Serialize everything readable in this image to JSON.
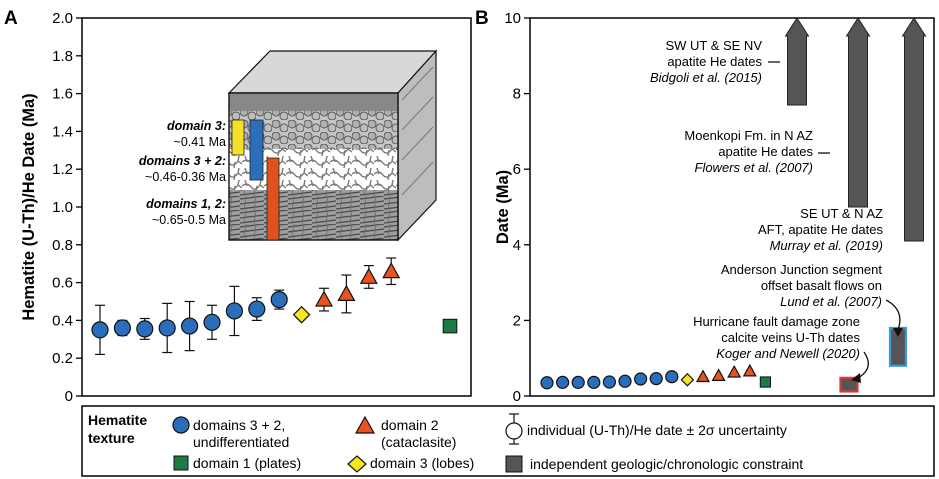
{
  "chart_data": [
    {
      "panel": "A",
      "type": "scatter",
      "ylabel": "Hematite (U-Th)/He Date (Ma)",
      "ylim": [
        0,
        2.0
      ],
      "yticks": [
        "0",
        "0.2",
        "0.4",
        "0.6",
        "0.8",
        "1.0",
        "1.2",
        "1.4",
        "1.6",
        "1.8",
        "2.0"
      ],
      "grid": false,
      "series": [
        {
          "name": "domains 3 + 2, undifferentiated",
          "marker": "circle",
          "color": "#2a6ebb",
          "points": [
            {
              "y": 0.35,
              "err": 0.13
            },
            {
              "y": 0.36,
              "err": 0.04
            },
            {
              "y": 0.355,
              "err": 0.055
            },
            {
              "y": 0.36,
              "err": 0.13
            },
            {
              "y": 0.37,
              "err": 0.13
            },
            {
              "y": 0.39,
              "err": 0.09
            },
            {
              "y": 0.45,
              "err": 0.13
            },
            {
              "y": 0.46,
              "err": 0.06
            },
            {
              "y": 0.51,
              "err": 0.05
            }
          ]
        },
        {
          "name": "domain 3 (lobes)",
          "marker": "diamond",
          "color": "#f7e51e",
          "points": [
            {
              "y": 0.43,
              "err": 0.0
            }
          ]
        },
        {
          "name": "domain 2 (cataclasite)",
          "marker": "triangle",
          "color": "#e8531e",
          "points": [
            {
              "y": 0.51,
              "err": 0.06
            },
            {
              "y": 0.54,
              "err": 0.1
            },
            {
              "y": 0.63,
              "err": 0.06
            },
            {
              "y": 0.66,
              "err": 0.07
            }
          ]
        },
        {
          "name": "domain 1 (plates)",
          "marker": "square",
          "color": "#1e7a44",
          "points": [
            {
              "y": 0.37,
              "err": 0.0
            }
          ]
        }
      ],
      "inset": {
        "annotations": [
          {
            "title": "domain 3:",
            "value": "~0.41 Ma",
            "color": "#f5e12a"
          },
          {
            "title": "domains 3 + 2:",
            "value": "~0.46-0.36 Ma",
            "color": "#2b6fbb"
          },
          {
            "title": "domains 1, 2:",
            "value": "~0.65-0.5 Ma",
            "color": "#e1501f"
          }
        ]
      }
    },
    {
      "panel": "B",
      "type": "scatter",
      "ylabel": "Date (Ma)",
      "ylim": [
        0,
        10
      ],
      "yticks": [
        "0",
        "2",
        "4",
        "6",
        "8",
        "10"
      ],
      "grid": false,
      "points": [
        {
          "y": 0.35,
          "marker": "circle"
        },
        {
          "y": 0.36,
          "marker": "circle"
        },
        {
          "y": 0.36,
          "marker": "circle"
        },
        {
          "y": 0.36,
          "marker": "circle"
        },
        {
          "y": 0.37,
          "marker": "circle"
        },
        {
          "y": 0.39,
          "marker": "circle"
        },
        {
          "y": 0.45,
          "marker": "circle"
        },
        {
          "y": 0.46,
          "marker": "circle"
        },
        {
          "y": 0.51,
          "marker": "circle"
        },
        {
          "y": 0.43,
          "marker": "diamond"
        },
        {
          "y": 0.51,
          "marker": "triangle"
        },
        {
          "y": 0.54,
          "marker": "triangle"
        },
        {
          "y": 0.63,
          "marker": "triangle"
        },
        {
          "y": 0.66,
          "marker": "triangle"
        },
        {
          "y": 0.37,
          "marker": "square"
        }
      ],
      "constraints": [
        {
          "id": "bidgoli",
          "lines": [
            "SW UT & SE NV",
            "apatite He dates"
          ],
          "citation": "Bidgoli et al. (2015)",
          "from": 7.7,
          "to": 10,
          "arrow_up": true
        },
        {
          "id": "flowers",
          "lines": [
            "Moenkopi Fm. in N AZ",
            "apatite He dates"
          ],
          "citation": "Flowers et al. (2007)",
          "from": 5.0,
          "to": 10,
          "arrow_up": true
        },
        {
          "id": "murray",
          "lines": [
            "SE UT & N AZ",
            "AFT, apatite He dates"
          ],
          "citation": "Murray et al. (2019)",
          "from": 4.1,
          "to": 10,
          "arrow_up": true
        },
        {
          "id": "lund",
          "lines": [
            "Anderson Junction segment",
            "offset basalt flows on"
          ],
          "citation": "Lund et al. (2007)",
          "from": 0.8,
          "to": 1.8,
          "outline": "#3a9ad6"
        },
        {
          "id": "koger",
          "lines": [
            "Hurricane fault damage zone",
            "calcite veins U-Th dates"
          ],
          "citation": "Koger and Newell (2020)",
          "from": 0.12,
          "to": 0.48,
          "outline": "#d33a3a"
        }
      ]
    }
  ],
  "panel_labels": {
    "a": "A",
    "b": "B"
  },
  "legend": {
    "title_line1": "Hematite",
    "title_line2": "texture",
    "domains32_line1": "domains 3 + 2,",
    "domains32_line2": "undifferentiated",
    "domain2_line1": "domain 2",
    "domain2_line2": "(cataclasite)",
    "domain1": "domain 1 (plates)",
    "domain3": "domain 3 (lobes)",
    "individual": "individual (U-Th)/He date ± 2σ uncertainty",
    "independent": "independent geologic/chronologic constraint"
  },
  "colors": {
    "blue": "#2a6ebb",
    "orange": "#e8531e",
    "yellow": "#f7e51e",
    "green": "#1e7a44",
    "gray_bar": "#555555",
    "inset_yellow": "#f5e12a",
    "inset_blue": "#2b6fbb",
    "inset_orange": "#e1501f"
  }
}
